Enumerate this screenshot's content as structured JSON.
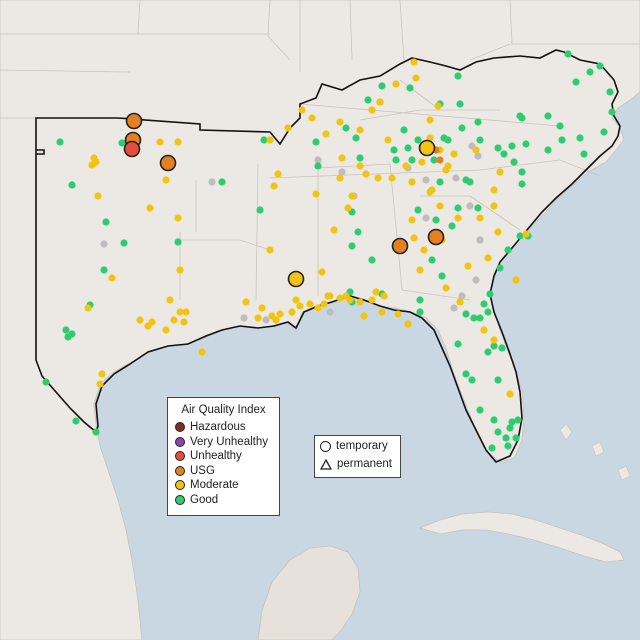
{
  "colors": {
    "water": "#c9d7e3",
    "land": "#ece9e4",
    "mexico_land": "#e6e1da",
    "Hazardous": "#7e2d1f",
    "Very Unhealthy": "#8e44ad",
    "Unhealthy": "#e74c3c",
    "USG": "#e67e22",
    "Moderate": "#f1c40f",
    "Good": "#2ecc71",
    "No Data": "#bdbdbd"
  },
  "legend": {
    "title": "Air Quality Index",
    "items": [
      {
        "label": "Hazardous",
        "color": "#7e2d1f"
      },
      {
        "label": "Very Unhealthy",
        "color": "#8e44ad"
      },
      {
        "label": "Unhealthy",
        "color": "#e74c3c"
      },
      {
        "label": "USG",
        "color": "#e67e22"
      },
      {
        "label": "Moderate",
        "color": "#f1c40f"
      },
      {
        "label": "Good",
        "color": "#2ecc71"
      }
    ]
  },
  "type_legend": {
    "temporary_label": "temporary",
    "permanent_label": "permanent"
  },
  "stations": {
    "good": [
      [
        60,
        142
      ],
      [
        72,
        185
      ],
      [
        106,
        222
      ],
      [
        124,
        243
      ],
      [
        104,
        270
      ],
      [
        90,
        305
      ],
      [
        66,
        330
      ],
      [
        72,
        334
      ],
      [
        68,
        337
      ],
      [
        46,
        382
      ],
      [
        76,
        421
      ],
      [
        96,
        432
      ],
      [
        122,
        143
      ],
      [
        222,
        182
      ],
      [
        178,
        242
      ],
      [
        260,
        210
      ],
      [
        264,
        140
      ],
      [
        316,
        142
      ],
      [
        318,
        166
      ],
      [
        346,
        128
      ],
      [
        356,
        138
      ],
      [
        360,
        158
      ],
      [
        368,
        100
      ],
      [
        382,
        86
      ],
      [
        380,
        102
      ],
      [
        410,
        88
      ],
      [
        440,
        104
      ],
      [
        458,
        76
      ],
      [
        460,
        104
      ],
      [
        462,
        128
      ],
      [
        448,
        140
      ],
      [
        478,
        122
      ],
      [
        480,
        140
      ],
      [
        408,
        148
      ],
      [
        418,
        140
      ],
      [
        396,
        160
      ],
      [
        352,
        212
      ],
      [
        358,
        232
      ],
      [
        352,
        246
      ],
      [
        372,
        260
      ],
      [
        350,
        292
      ],
      [
        352,
        302
      ],
      [
        418,
        210
      ],
      [
        436,
        220
      ],
      [
        458,
        208
      ],
      [
        452,
        226
      ],
      [
        478,
        208
      ],
      [
        470,
        182
      ],
      [
        498,
        148
      ],
      [
        504,
        154
      ],
      [
        512,
        146
      ],
      [
        526,
        144
      ],
      [
        514,
        162
      ],
      [
        522,
        172
      ],
      [
        548,
        150
      ],
      [
        562,
        140
      ],
      [
        584,
        154
      ],
      [
        580,
        138
      ],
      [
        560,
        126
      ],
      [
        548,
        116
      ],
      [
        520,
        116
      ],
      [
        600,
        66
      ],
      [
        576,
        82
      ],
      [
        568,
        54
      ],
      [
        590,
        72
      ],
      [
        610,
        92
      ],
      [
        612,
        112
      ],
      [
        604,
        132
      ],
      [
        520,
        236
      ],
      [
        528,
        236
      ],
      [
        508,
        250
      ],
      [
        500,
        268
      ],
      [
        490,
        294
      ],
      [
        484,
        304
      ],
      [
        488,
        312
      ],
      [
        480,
        318
      ],
      [
        458,
        344
      ],
      [
        466,
        374
      ],
      [
        472,
        380
      ],
      [
        488,
        352
      ],
      [
        494,
        346
      ],
      [
        502,
        348
      ],
      [
        498,
        380
      ],
      [
        480,
        410
      ],
      [
        494,
        420
      ],
      [
        498,
        432
      ],
      [
        506,
        438
      ],
      [
        510,
        428
      ],
      [
        512,
        422
      ],
      [
        518,
        420
      ],
      [
        516,
        438
      ],
      [
        508,
        446
      ],
      [
        492,
        448
      ],
      [
        522,
        118
      ],
      [
        404,
        130
      ],
      [
        382,
        294
      ],
      [
        432,
        260
      ],
      [
        442,
        276
      ],
      [
        420,
        312
      ],
      [
        420,
        300
      ],
      [
        440,
        182
      ],
      [
        466,
        180
      ],
      [
        522,
        184
      ],
      [
        444,
        138
      ],
      [
        434,
        160
      ],
      [
        394,
        150
      ],
      [
        412,
        160
      ],
      [
        466,
        314
      ],
      [
        474,
        318
      ]
    ],
    "moderate": [
      [
        94,
        158
      ],
      [
        96,
        162
      ],
      [
        92,
        165
      ],
      [
        98,
        196
      ],
      [
        160,
        142
      ],
      [
        178,
        142
      ],
      [
        166,
        180
      ],
      [
        150,
        208
      ],
      [
        178,
        218
      ],
      [
        180,
        270
      ],
      [
        170,
        300
      ],
      [
        180,
        312
      ],
      [
        186,
        312
      ],
      [
        184,
        322
      ],
      [
        174,
        320
      ],
      [
        166,
        330
      ],
      [
        152,
        322
      ],
      [
        148,
        326
      ],
      [
        140,
        320
      ],
      [
        112,
        278
      ],
      [
        100,
        384
      ],
      [
        102,
        374
      ],
      [
        88,
        308
      ],
      [
        202,
        352
      ],
      [
        246,
        302
      ],
      [
        262,
        308
      ],
      [
        258,
        318
      ],
      [
        272,
        316
      ],
      [
        276,
        320
      ],
      [
        280,
        314
      ],
      [
        292,
        312
      ],
      [
        296,
        300
      ],
      [
        300,
        306
      ],
      [
        310,
        304
      ],
      [
        318,
        308
      ],
      [
        324,
        304
      ],
      [
        330,
        296
      ],
      [
        340,
        298
      ],
      [
        350,
        300
      ],
      [
        360,
        302
      ],
      [
        372,
        300
      ],
      [
        376,
        292
      ],
      [
        384,
        296
      ],
      [
        382,
        312
      ],
      [
        364,
        316
      ],
      [
        346,
        296
      ],
      [
        328,
        296
      ],
      [
        270,
        140
      ],
      [
        288,
        128
      ],
      [
        302,
        110
      ],
      [
        312,
        118
      ],
      [
        326,
        134
      ],
      [
        340,
        122
      ],
      [
        342,
        158
      ],
      [
        360,
        166
      ],
      [
        366,
        174
      ],
      [
        378,
        178
      ],
      [
        392,
        178
      ],
      [
        406,
        166
      ],
      [
        412,
        182
      ],
      [
        422,
        162
      ],
      [
        430,
        138
      ],
      [
        440,
        150
      ],
      [
        454,
        154
      ],
      [
        448,
        166
      ],
      [
        430,
        192
      ],
      [
        412,
        220
      ],
      [
        414,
        238
      ],
      [
        424,
        250
      ],
      [
        420,
        270
      ],
      [
        440,
        206
      ],
      [
        458,
        218
      ],
      [
        500,
        172
      ],
      [
        494,
        190
      ],
      [
        498,
        232
      ],
      [
        488,
        258
      ],
      [
        526,
        234
      ],
      [
        516,
        280
      ],
      [
        484,
        330
      ],
      [
        494,
        340
      ],
      [
        510,
        394
      ],
      [
        274,
        186
      ],
      [
        270,
        250
      ],
      [
        278,
        174
      ],
      [
        316,
        194
      ],
      [
        322,
        272
      ],
      [
        352,
        196
      ],
      [
        348,
        208
      ],
      [
        430,
        120
      ],
      [
        438,
        106
      ],
      [
        414,
        62
      ],
      [
        416,
        78
      ],
      [
        396,
        84
      ],
      [
        380,
        102
      ],
      [
        388,
        140
      ],
      [
        372,
        110
      ],
      [
        340,
        178
      ],
      [
        334,
        230
      ],
      [
        360,
        130
      ],
      [
        432,
        190
      ],
      [
        446,
        170
      ],
      [
        476,
        150
      ],
      [
        494,
        206
      ],
      [
        442,
        240
      ],
      [
        480,
        218
      ],
      [
        468,
        266
      ],
      [
        408,
        324
      ],
      [
        398,
        314
      ],
      [
        460,
        302
      ],
      [
        446,
        288
      ]
    ],
    "nodata": [
      [
        104,
        244
      ],
      [
        212,
        182
      ],
      [
        318,
        160
      ],
      [
        342,
        172
      ],
      [
        354,
        196
      ],
      [
        408,
        168
      ],
      [
        426,
        180
      ],
      [
        456,
        178
      ],
      [
        470,
        206
      ],
      [
        472,
        146
      ],
      [
        480,
        240
      ],
      [
        426,
        218
      ],
      [
        376,
        292
      ],
      [
        330,
        312
      ],
      [
        266,
        320
      ],
      [
        244,
        318
      ],
      [
        462,
        296
      ],
      [
        454,
        308
      ],
      [
        476,
        280
      ],
      [
        478,
        156
      ]
    ],
    "small_usg": [
      [
        440,
        160
      ],
      [
        436,
        150
      ]
    ],
    "large": [
      {
        "x": 134,
        "y": 121,
        "cat": "USG"
      },
      {
        "x": 133,
        "y": 140,
        "cat": "USG"
      },
      {
        "x": 132,
        "y": 149,
        "cat": "Unhealthy"
      },
      {
        "x": 168,
        "y": 163,
        "cat": "USG"
      },
      {
        "x": 427,
        "y": 148,
        "cat": "Moderate"
      },
      {
        "x": 400,
        "y": 246,
        "cat": "USG"
      },
      {
        "x": 436,
        "y": 237,
        "cat": "USG"
      },
      {
        "x": 296,
        "y": 279,
        "cat": "Moderate"
      }
    ]
  }
}
